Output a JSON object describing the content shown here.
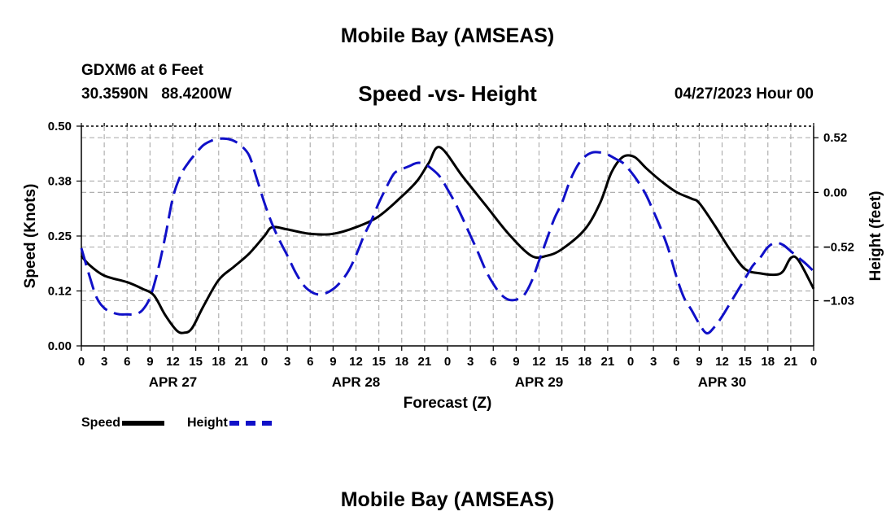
{
  "page": {
    "title": "Mobile Bay (AMSEAS)",
    "station": "GDXM6 at 6 Feet",
    "coords": "30.3590N   88.4200W",
    "subtitle": "Speed -vs- Height",
    "datetime": "04/27/2023 Hour 00",
    "footer_title": "Mobile Bay (AMSEAS)"
  },
  "colors": {
    "speed": "#000000",
    "height": "#1010c8",
    "grid": "#b0b0b0"
  },
  "chart_data": {
    "type": "line",
    "title": "Speed -vs- Height",
    "xlabel": "Forecast (Z)",
    "ylabel_left": "Speed (Knots)",
    "ylabel_right": "Height (feet)",
    "x_range_hours": [
      0,
      96
    ],
    "x_tick_labels": [
      "0",
      "3",
      "6",
      "9",
      "12",
      "15",
      "18",
      "21",
      "0",
      "3",
      "6",
      "9",
      "12",
      "15",
      "18",
      "21",
      "0",
      "3",
      "6",
      "9",
      "12",
      "15",
      "18",
      "21",
      "0",
      "3",
      "6",
      "9",
      "12",
      "15",
      "18",
      "21",
      "0"
    ],
    "day_labels": [
      {
        "label": "APR 27",
        "hour": 12
      },
      {
        "label": "APR 28",
        "hour": 36
      },
      {
        "label": "APR 29",
        "hour": 60
      },
      {
        "label": "APR 30",
        "hour": 84
      }
    ],
    "left_axis": {
      "ylim": [
        0,
        0.5
      ],
      "ticks": [
        0,
        0.125,
        0.25,
        0.375,
        0.5
      ],
      "tick_labels": [
        "0.00",
        "0.12",
        "0.25",
        "0.38",
        "0.50"
      ]
    },
    "right_axis": {
      "ylim": [
        -1.46,
        0.63
      ],
      "ticks": [
        0.52,
        0.0,
        -0.52,
        -1.03
      ],
      "tick_labels": [
        "0.52",
        "0.00",
        "−0.52",
        "−1.03"
      ]
    },
    "grid": true,
    "legend_position": "bottom-left",
    "series": [
      {
        "name": "Speed",
        "axis": "left",
        "style": "solid",
        "x": [
          0,
          1,
          3,
          6,
          8,
          9.5,
          11,
          12.5,
          13.5,
          14.5,
          16,
          18,
          20,
          22,
          24,
          25,
          27,
          30,
          33,
          36,
          39,
          42,
          44,
          45.5,
          47,
          50,
          53,
          56,
          59,
          61,
          63,
          66,
          68,
          69.5,
          71,
          72.5,
          74,
          76,
          78,
          80,
          81,
          83,
          85,
          87,
          89,
          91,
          92,
          93,
          94,
          96
        ],
        "y": [
          0.205,
          0.185,
          0.16,
          0.145,
          0.13,
          0.115,
          0.07,
          0.035,
          0.03,
          0.04,
          0.09,
          0.15,
          0.18,
          0.21,
          0.25,
          0.27,
          0.265,
          0.255,
          0.255,
          0.27,
          0.295,
          0.34,
          0.375,
          0.415,
          0.452,
          0.385,
          0.32,
          0.255,
          0.205,
          0.205,
          0.22,
          0.265,
          0.325,
          0.395,
          0.43,
          0.43,
          0.405,
          0.375,
          0.35,
          0.335,
          0.325,
          0.275,
          0.22,
          0.175,
          0.165,
          0.162,
          0.17,
          0.2,
          0.195,
          0.13
        ]
      },
      {
        "name": "Height",
        "axis": "right",
        "style": "dashed",
        "x": [
          0,
          1,
          2,
          3,
          4,
          5,
          6,
          7,
          8,
          9,
          10,
          11,
          12,
          13,
          14,
          15,
          16,
          17,
          18,
          19,
          20,
          21,
          22,
          23,
          24,
          25,
          26,
          27,
          28,
          29,
          30,
          31,
          32,
          33,
          34,
          35,
          36,
          37,
          38,
          39,
          40,
          41,
          42,
          43,
          44,
          45,
          46,
          47,
          48,
          49,
          50,
          51,
          52,
          53,
          54,
          55,
          56,
          57,
          58,
          59,
          60,
          61,
          62,
          63,
          64,
          65,
          66,
          67,
          68,
          69,
          70,
          71,
          72,
          73,
          74,
          75,
          76,
          77,
          78,
          79,
          80,
          81,
          82,
          83,
          84,
          85,
          86,
          87,
          88,
          89,
          90,
          91,
          92,
          93,
          94,
          95,
          96
        ],
        "y": [
          -0.53,
          -0.78,
          -1.0,
          -1.1,
          -1.14,
          -1.16,
          -1.16,
          -1.16,
          -1.12,
          -1.0,
          -0.75,
          -0.42,
          -0.05,
          0.16,
          0.28,
          0.37,
          0.45,
          0.49,
          0.51,
          0.51,
          0.49,
          0.44,
          0.35,
          0.13,
          -0.1,
          -0.3,
          -0.46,
          -0.6,
          -0.75,
          -0.87,
          -0.94,
          -0.97,
          -0.96,
          -0.92,
          -0.85,
          -0.75,
          -0.6,
          -0.42,
          -0.27,
          -0.1,
          0.05,
          0.18,
          0.22,
          0.25,
          0.28,
          0.27,
          0.22,
          0.15,
          0.03,
          -0.1,
          -0.25,
          -0.41,
          -0.57,
          -0.74,
          -0.87,
          -0.97,
          -1.02,
          -1.02,
          -0.98,
          -0.85,
          -0.65,
          -0.45,
          -0.25,
          -0.1,
          0.1,
          0.25,
          0.34,
          0.38,
          0.38,
          0.36,
          0.32,
          0.28,
          0.2,
          0.1,
          -0.02,
          -0.18,
          -0.35,
          -0.55,
          -0.8,
          -1.0,
          -1.12,
          -1.25,
          -1.34,
          -1.28,
          -1.18,
          -1.06,
          -0.94,
          -0.82,
          -0.7,
          -0.62,
          -0.52,
          -0.48,
          -0.5,
          -0.56,
          -0.62,
          -0.68,
          -0.75
        ]
      }
    ]
  }
}
